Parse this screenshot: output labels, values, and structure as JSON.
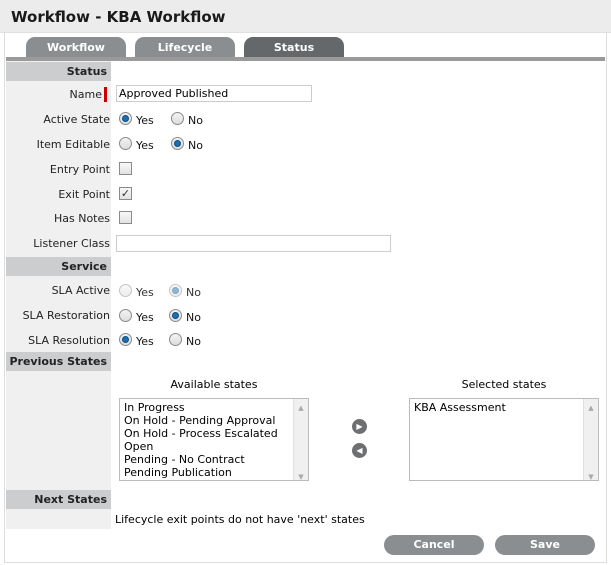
{
  "title": "Workflow - KBA Workflow",
  "tabs": [
    {
      "label": "Workflow"
    },
    {
      "label": "Lifecycle"
    },
    {
      "label": "Status",
      "active": true
    }
  ],
  "sections": {
    "status": "Status",
    "service": "Service",
    "previous": "Previous States",
    "next": "Next States"
  },
  "fields": {
    "name": {
      "label": "Name",
      "value": "Approved Published",
      "required": true
    },
    "active_state": {
      "label": "Active State",
      "options": [
        "Yes",
        "No"
      ],
      "selected": "Yes"
    },
    "item_editable": {
      "label": "Item Editable",
      "options": [
        "Yes",
        "No"
      ],
      "selected": "No"
    },
    "entry_point": {
      "label": "Entry Point",
      "checked": false
    },
    "exit_point": {
      "label": "Exit Point",
      "checked": true
    },
    "has_notes": {
      "label": "Has Notes",
      "checked": false
    },
    "listener_class": {
      "label": "Listener Class",
      "value": ""
    },
    "sla_active": {
      "label": "SLA Active",
      "options": [
        "Yes",
        "No"
      ],
      "selected": "No",
      "disabled": true
    },
    "sla_restoration": {
      "label": "SLA Restoration",
      "options": [
        "Yes",
        "No"
      ],
      "selected": "No"
    },
    "sla_resolution": {
      "label": "SLA Resolution",
      "options": [
        "Yes",
        "No"
      ],
      "selected": "Yes"
    }
  },
  "previous_states": {
    "available_label": "Available states",
    "selected_label": "Selected states",
    "available": [
      "In Progress",
      "On Hold - Pending Approval",
      "On Hold - Process Escalated",
      "Open",
      "Pending - No Contract",
      "Pending Publication"
    ],
    "selected": [
      "KBA Assessment"
    ]
  },
  "next_states_text": "Lifecycle exit points do not have 'next' states",
  "buttons": {
    "cancel": "Cancel",
    "save": "Save"
  },
  "colors": {
    "accent": "#1d6fb0",
    "required": "#cc0000",
    "tab": "#8a8e90",
    "tab_active": "#64686b"
  }
}
